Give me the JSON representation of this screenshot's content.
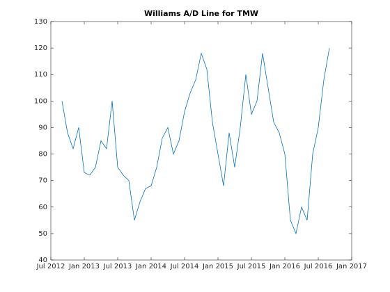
{
  "chart_data": {
    "type": "line",
    "title": "Williams A/D Line for TMW",
    "x": [
      "2012-09",
      "2012-10",
      "2012-11",
      "2012-12",
      "2013-01",
      "2013-02",
      "2013-03",
      "2013-04",
      "2013-05",
      "2013-06",
      "2013-07",
      "2013-08",
      "2013-09",
      "2013-10",
      "2013-11",
      "2013-12",
      "2014-01",
      "2014-02",
      "2014-03",
      "2014-04",
      "2014-05",
      "2014-06",
      "2014-07",
      "2014-08",
      "2014-09",
      "2014-10",
      "2014-11",
      "2014-12",
      "2015-01",
      "2015-02",
      "2015-03",
      "2015-04",
      "2015-05",
      "2015-06",
      "2015-07",
      "2015-08",
      "2015-09",
      "2015-10",
      "2015-11",
      "2015-12",
      "2016-01",
      "2016-02",
      "2016-03",
      "2016-04",
      "2016-05",
      "2016-06",
      "2016-07",
      "2016-08",
      "2016-09"
    ],
    "series": [
      {
        "name": "TMW",
        "color": "#0072bd",
        "values": [
          100,
          88,
          82,
          90,
          73,
          72,
          75,
          85,
          82,
          100,
          75,
          72,
          70,
          55,
          62,
          67,
          68,
          75,
          86,
          90,
          80,
          85,
          96,
          103,
          108,
          118,
          112,
          92,
          80,
          68,
          88,
          75,
          90,
          110,
          95,
          100,
          118,
          105,
          92,
          88,
          80,
          55,
          50,
          60,
          55,
          80,
          90,
          108,
          120
        ]
      }
    ],
    "xlim": [
      "2012-07",
      "2017-01"
    ],
    "xticks": [
      {
        "value": "2012-07",
        "label": "Jul 2012"
      },
      {
        "value": "2013-01",
        "label": "Jan 2013"
      },
      {
        "value": "2013-07",
        "label": "Jul 2013"
      },
      {
        "value": "2014-01",
        "label": "Jan 2014"
      },
      {
        "value": "2014-07",
        "label": "Jul 2014"
      },
      {
        "value": "2015-01",
        "label": "Jan 2015"
      },
      {
        "value": "2015-07",
        "label": "Jul 2015"
      },
      {
        "value": "2016-01",
        "label": "Jan 2016"
      },
      {
        "value": "2016-07",
        "label": "Jul 2016"
      },
      {
        "value": "2017-01",
        "label": "Jan 2017"
      }
    ],
    "ylim": [
      40,
      130
    ],
    "yticks": [
      40,
      50,
      60,
      70,
      80,
      90,
      100,
      110,
      120,
      130
    ],
    "grid": false
  }
}
